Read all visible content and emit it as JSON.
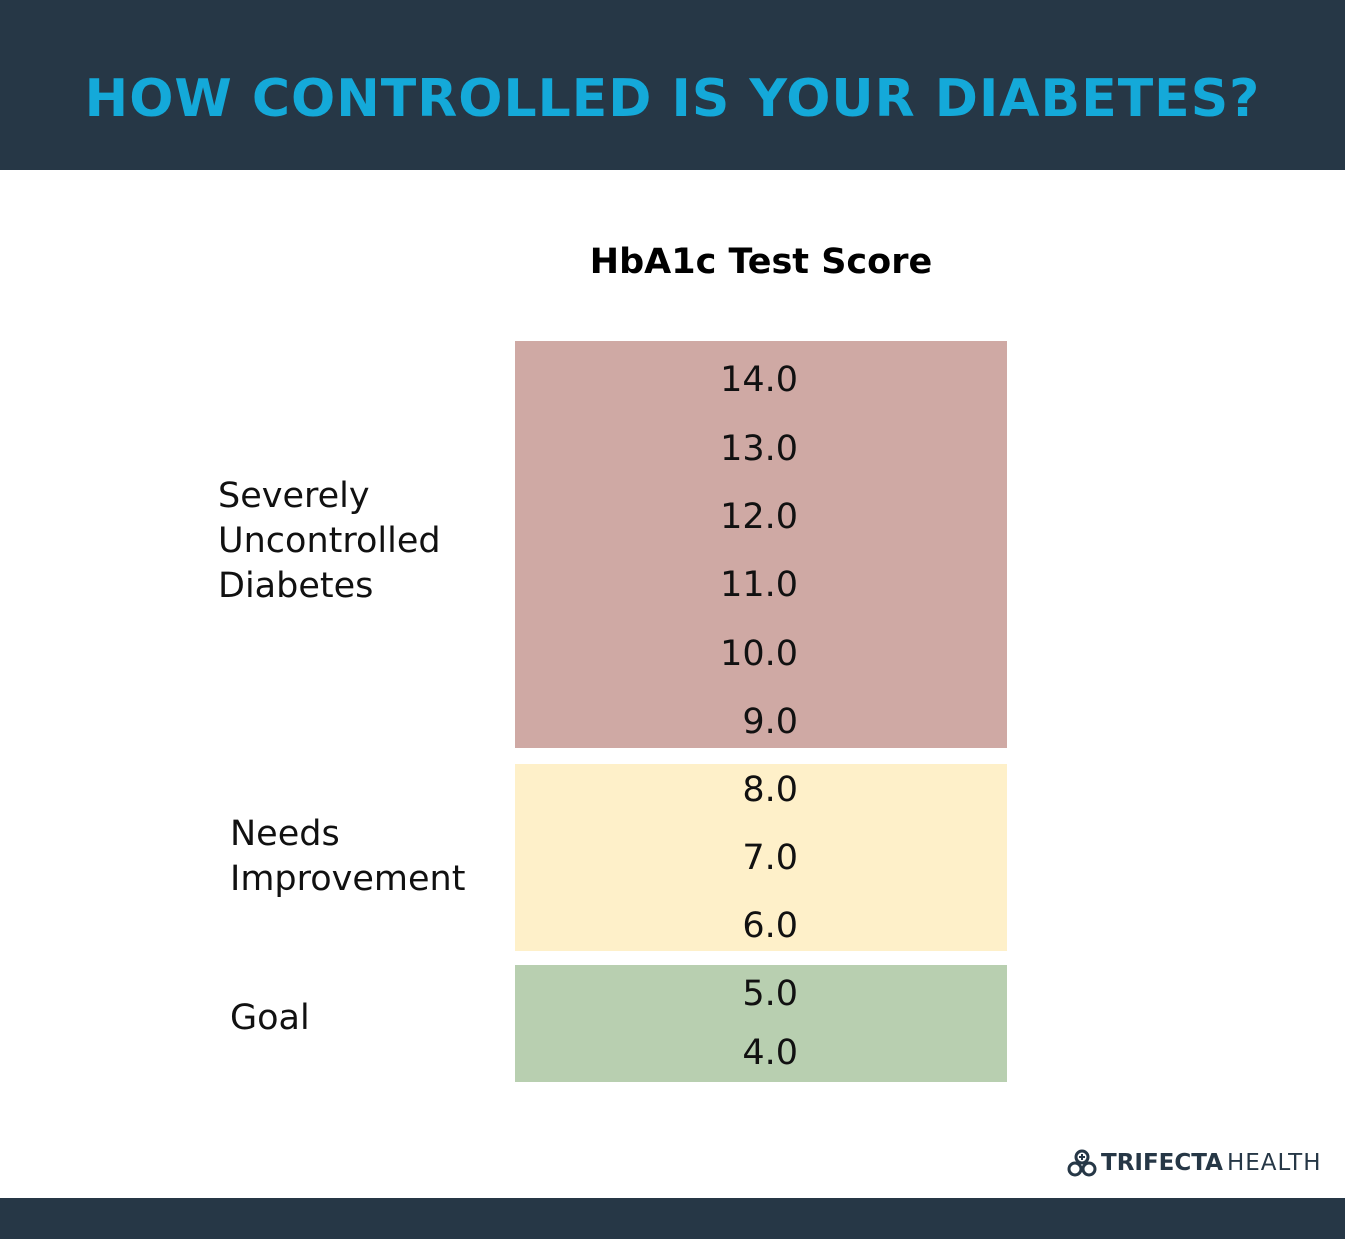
{
  "header": {
    "title": "HOW CONTROLLED IS YOUR DIABETES?"
  },
  "subtitle": "HbA1c Test Score",
  "colors": {
    "header_bg": "#263746",
    "title": "#14a9d9",
    "severe": "#cfa9a4",
    "needs": "#fef0c9",
    "goal": "#b8cfb0"
  },
  "bands": [
    {
      "label": "Severely Uncontrolled Diabetes",
      "label_lines": [
        "Severely",
        "Uncontrolled",
        "Diabetes"
      ],
      "values": [
        "14.0",
        "13.0",
        "12.0",
        "11.0",
        "10.0",
        "9.0"
      ]
    },
    {
      "label": "Needs Improvement",
      "label_lines": [
        "Needs",
        "Improvement"
      ],
      "values": [
        "8.0",
        "7.0",
        "6.0"
      ]
    },
    {
      "label": "Goal",
      "label_lines": [
        "Goal"
      ],
      "values": [
        "5.0",
        "4.0"
      ]
    }
  ],
  "logo": {
    "bold": "TRIFECTA",
    "light": "HEALTH"
  }
}
